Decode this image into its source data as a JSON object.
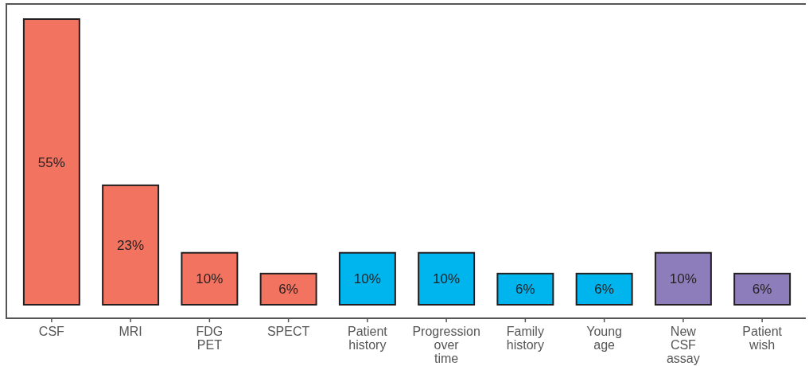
{
  "chart_data": {
    "type": "bar",
    "categories": [
      "CSF",
      "MRI",
      "FDG PET",
      "SPECT",
      "Patient history",
      "Progression over time",
      "Family history",
      "Young age",
      "New CSF assay",
      "Patient wish"
    ],
    "values": [
      55,
      23,
      10,
      6,
      10,
      10,
      6,
      6,
      10,
      6
    ],
    "colors": [
      "#f27360",
      "#f27360",
      "#f27360",
      "#f27360",
      "#00b4ee",
      "#00b4ee",
      "#00b4ee",
      "#00b4ee",
      "#8e7dbb",
      "#8e7dbb"
    ],
    "value_labels": [
      "55%",
      "23%",
      "10%",
      "6%",
      "10%",
      "10%",
      "6%",
      "6%",
      "10%",
      "6%"
    ],
    "relative": false,
    "grid": false
  }
}
